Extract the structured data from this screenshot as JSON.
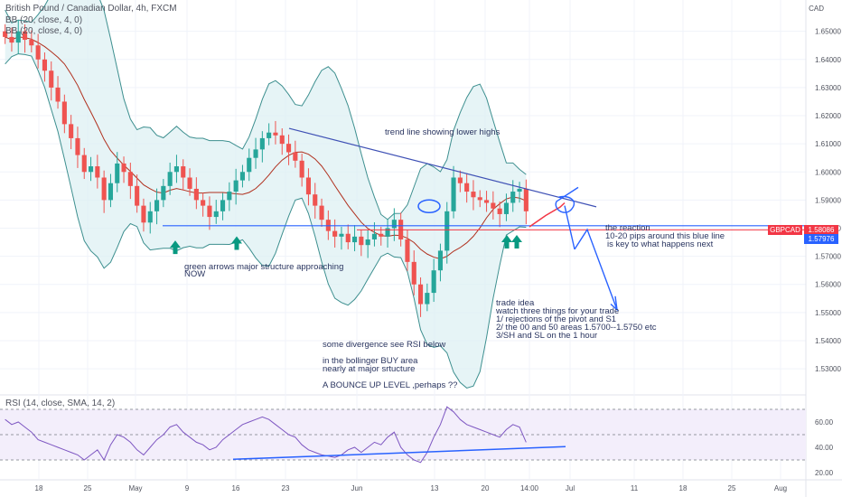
{
  "header": {
    "symbol_line": "British Pound / Canadian Dollar, 4h, FXCM",
    "indicator_1": "BB (20, close, 4, 0)",
    "indicator_2": "BB (20, close, 4, 0)",
    "currency": "CAD"
  },
  "price_tags": {
    "symbol": "GBPCAD",
    "value_1": "1.58086",
    "value_2": "1.57976"
  },
  "rsi_panel": {
    "label": "RSI (14, close, SMA, 14, 2)"
  },
  "annotations": {
    "trend": "trend line showing lower highs",
    "green_1": "green arrows major structure approaching",
    "green_2": "NOW",
    "reaction_1": "the reaction",
    "reaction_2": "10-20 pips around this blue line",
    "reaction_3": "is key to what happens next",
    "idea_1": "trade idea",
    "idea_2": "watch three things for your trade",
    "idea_3": "1/ rejections of the pivot and S1",
    "idea_4": "2/ the 00 and 50 areas   1.5700--1.5750 etc",
    "idea_5": "3/SH and SL on the 1 hour",
    "div_1": "some divergence see RSI below",
    "div_2": "in the bollinger BUY area",
    "div_3": "nearly at major srtucture",
    "div_4": "A BOUNCE UP LEVEL ,perhaps ??"
  },
  "colors": {
    "up": "#26a69a",
    "down": "#ef5350",
    "bb_band": "#3d8f8f",
    "bb_fill": "#dbeff2",
    "basis": "#b0301e",
    "drawing": "#2962ff",
    "rsi_line": "#7e57c2",
    "rsi_fill": "#f3eefb",
    "tag_red": "#f23645",
    "tag_blue": "#2962ff",
    "arrow_green": "#089981"
  },
  "chart_data": [
    {
      "type": "candlestick",
      "price_axis": {
        "ticks": [
          1.65,
          1.64,
          1.63,
          1.62,
          1.61,
          1.6,
          1.59,
          1.58,
          1.57,
          1.56,
          1.55,
          1.54,
          1.53
        ],
        "labels": [
          "1.65000",
          "1.64000",
          "1.63000",
          "1.62000",
          "1.61000",
          "1.60000",
          "1.59000",
          "1.58000",
          "1.57000",
          "1.56000",
          "1.55000",
          "1.54000",
          "1.53000"
        ],
        "ylim": [
          1.522,
          1.6605
        ]
      },
      "time_axis": {
        "labels": [
          "18",
          "25",
          "May",
          "9",
          "16",
          "23",
          "Jun",
          "13",
          "20",
          "14:00",
          "Jul",
          "11",
          "18",
          "25",
          "Aug"
        ]
      },
      "closes_approx": [
        1.648,
        1.646,
        1.65,
        1.647,
        1.645,
        1.64,
        1.636,
        1.63,
        1.625,
        1.617,
        1.612,
        1.606,
        1.6,
        1.602,
        1.598,
        1.59,
        1.596,
        1.603,
        1.6,
        1.595,
        1.588,
        1.582,
        1.586,
        1.59,
        1.595,
        1.6,
        1.602,
        1.598,
        1.594,
        1.59,
        1.588,
        1.584,
        1.586,
        1.59,
        1.593,
        1.597,
        1.6,
        1.605,
        1.608,
        1.612,
        1.614,
        1.613,
        1.61,
        1.607,
        1.604,
        1.598,
        1.592,
        1.588,
        1.583,
        1.579,
        1.577,
        1.578,
        1.575,
        1.577,
        1.574,
        1.576,
        1.578,
        1.577,
        1.58,
        1.583,
        1.576,
        1.568,
        1.56,
        1.553,
        1.557,
        1.565,
        1.572,
        1.586,
        1.598,
        1.596,
        1.593,
        1.591,
        1.59,
        1.589,
        1.587,
        1.585,
        1.589,
        1.593,
        1.594,
        1.586
      ],
      "last_price": 1.58086
    },
    {
      "type": "line",
      "name": "RSI (14, close, SMA, 14, 2)",
      "ylim": [
        15,
        80
      ],
      "ticks": [
        60,
        40,
        20
      ],
      "tick_labels": [
        "60.00",
        "40.00",
        "20.00"
      ],
      "values": [
        62,
        58,
        60,
        56,
        52,
        46,
        44,
        42,
        40,
        38,
        36,
        34,
        30,
        34,
        38,
        30,
        42,
        50,
        48,
        44,
        38,
        34,
        40,
        46,
        50,
        56,
        58,
        52,
        48,
        44,
        42,
        38,
        40,
        46,
        50,
        54,
        58,
        60,
        62,
        64,
        62,
        58,
        54,
        50,
        48,
        42,
        38,
        36,
        34,
        33,
        32,
        34,
        38,
        40,
        36,
        40,
        44,
        42,
        48,
        52,
        40,
        34,
        30,
        28,
        36,
        48,
        58,
        72,
        68,
        62,
        58,
        56,
        54,
        52,
        50,
        48,
        54,
        58,
        56,
        44
      ],
      "hline_levels": [
        70,
        50,
        30
      ]
    }
  ]
}
